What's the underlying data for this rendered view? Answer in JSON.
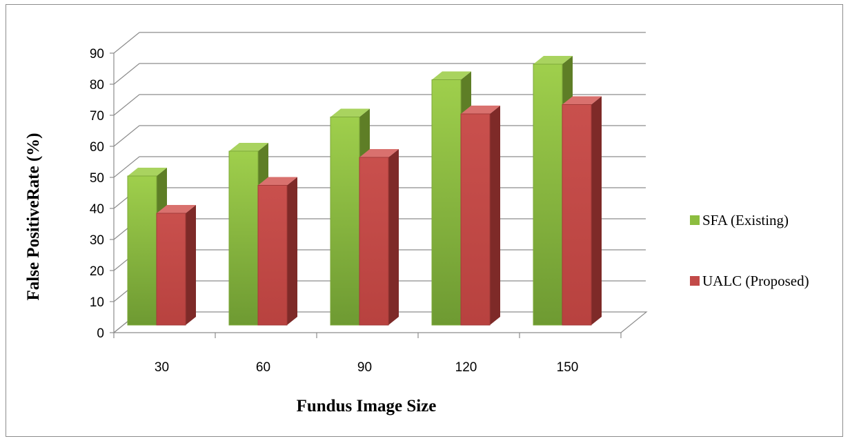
{
  "chart_data": {
    "type": "bar",
    "categories": [
      "30",
      "60",
      "90",
      "120",
      "150"
    ],
    "series": [
      {
        "name": "SFA (Existing)",
        "values": [
          48,
          56,
          67,
          79,
          84
        ]
      },
      {
        "name": "UALC (Proposed)",
        "values": [
          36,
          45,
          54,
          68,
          71
        ]
      }
    ],
    "title": "",
    "xlabel": "Fundus Image Size",
    "ylabel": "False PositiveRate (%)",
    "ylim": [
      0,
      90
    ],
    "yticks": [
      0,
      10,
      20,
      30,
      40,
      50,
      60,
      70,
      80,
      90
    ],
    "grid": true,
    "legend_position": "right",
    "colors": {
      "series_0_front": "#8cbd3f",
      "series_0_side": "#5e7e26",
      "series_0_top": "#a9d35f",
      "series_1_front": "#c24a48",
      "series_1_side": "#7e2a28",
      "series_1_top": "#d9716e",
      "gridline": "#8c8c8c"
    }
  }
}
